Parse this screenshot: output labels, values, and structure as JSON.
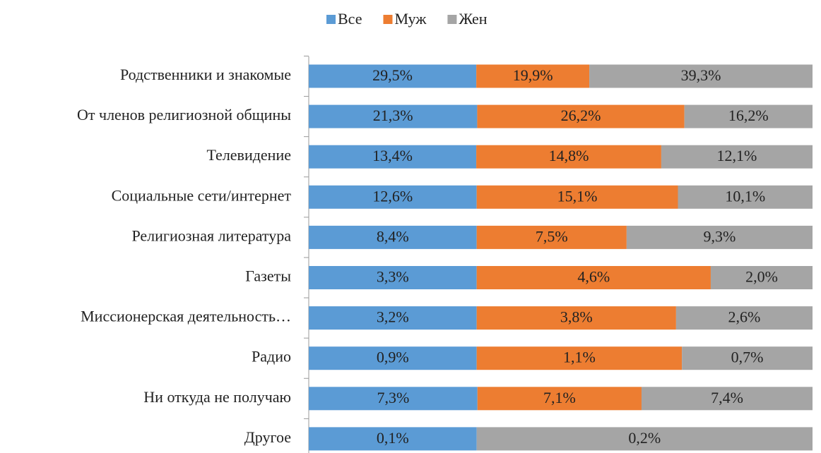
{
  "chart_data": {
    "type": "stacked100_bar_horizontal",
    "categories": [
      "Родственники и знакомые",
      "От членов религиозной общины",
      "Телевидение",
      "Социальные сети/интернет",
      "Религиозная литература",
      "Газеты",
      "Миссионерская деятельность…",
      "Радио",
      "Ни откуда не получаю",
      "Другое"
    ],
    "series": [
      {
        "name": "Все",
        "color": "#5b9bd5",
        "values": [
          29.5,
          21.3,
          13.4,
          12.6,
          8.4,
          3.3,
          3.2,
          0.9,
          7.3,
          0.1
        ],
        "value_labels": [
          "29,5%",
          "21,3%",
          "13,4%",
          "12,6%",
          "8,4%",
          "3,3%",
          "3,2%",
          "0,9%",
          "7,3%",
          "0,1%"
        ]
      },
      {
        "name": "Муж",
        "color": "#ed7d31",
        "values": [
          19.9,
          26.2,
          14.8,
          15.1,
          7.5,
          4.6,
          3.8,
          1.1,
          7.1,
          0
        ],
        "value_labels": [
          "19,9%",
          "26,2%",
          "14,8%",
          "15,1%",
          "7,5%",
          "4,6%",
          "3,8%",
          "1,1%",
          "7,1%",
          null
        ]
      },
      {
        "name": "Жен",
        "color": "#a5a5a5",
        "values": [
          39.3,
          16.2,
          12.1,
          10.1,
          9.3,
          2.0,
          2.6,
          0.7,
          7.4,
          0.2
        ],
        "value_labels": [
          "39,3%",
          "16,2%",
          "12,1%",
          "10,1%",
          "9,3%",
          "2,0%",
          "2,6%",
          "0,7%",
          "7,4%",
          "0,2%"
        ]
      }
    ],
    "legend": "top"
  }
}
